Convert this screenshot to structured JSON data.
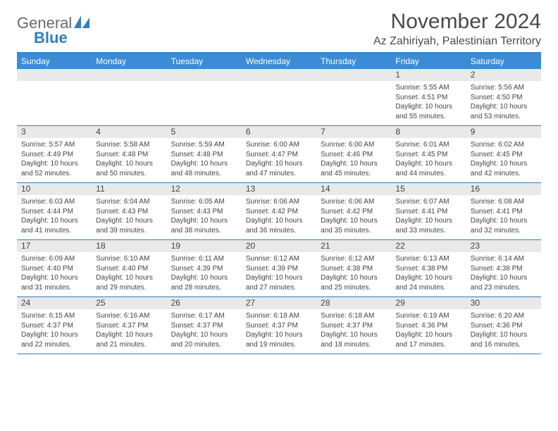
{
  "brand": {
    "word1": "General",
    "word2": "Blue"
  },
  "title": "November 2024",
  "location": "Az Zahiriyah, Palestinian Territory",
  "colors": {
    "header_bg": "#3b8cd4",
    "accent_border": "#2f7fc2",
    "daynum_bg": "#e9e9e9",
    "text": "#444444",
    "logo_gray": "#6b6b6b",
    "logo_blue": "#2f7fc2",
    "page_bg": "#ffffff"
  },
  "day_headers": [
    "Sunday",
    "Monday",
    "Tuesday",
    "Wednesday",
    "Thursday",
    "Friday",
    "Saturday"
  ],
  "weeks": [
    [
      {
        "n": "",
        "sunrise": "",
        "sunset": "",
        "daylight": ""
      },
      {
        "n": "",
        "sunrise": "",
        "sunset": "",
        "daylight": ""
      },
      {
        "n": "",
        "sunrise": "",
        "sunset": "",
        "daylight": ""
      },
      {
        "n": "",
        "sunrise": "",
        "sunset": "",
        "daylight": ""
      },
      {
        "n": "",
        "sunrise": "",
        "sunset": "",
        "daylight": ""
      },
      {
        "n": "1",
        "sunrise": "Sunrise: 5:55 AM",
        "sunset": "Sunset: 4:51 PM",
        "daylight": "Daylight: 10 hours and 55 minutes."
      },
      {
        "n": "2",
        "sunrise": "Sunrise: 5:56 AM",
        "sunset": "Sunset: 4:50 PM",
        "daylight": "Daylight: 10 hours and 53 minutes."
      }
    ],
    [
      {
        "n": "3",
        "sunrise": "Sunrise: 5:57 AM",
        "sunset": "Sunset: 4:49 PM",
        "daylight": "Daylight: 10 hours and 52 minutes."
      },
      {
        "n": "4",
        "sunrise": "Sunrise: 5:58 AM",
        "sunset": "Sunset: 4:48 PM",
        "daylight": "Daylight: 10 hours and 50 minutes."
      },
      {
        "n": "5",
        "sunrise": "Sunrise: 5:59 AM",
        "sunset": "Sunset: 4:48 PM",
        "daylight": "Daylight: 10 hours and 48 minutes."
      },
      {
        "n": "6",
        "sunrise": "Sunrise: 6:00 AM",
        "sunset": "Sunset: 4:47 PM",
        "daylight": "Daylight: 10 hours and 47 minutes."
      },
      {
        "n": "7",
        "sunrise": "Sunrise: 6:00 AM",
        "sunset": "Sunset: 4:46 PM",
        "daylight": "Daylight: 10 hours and 45 minutes."
      },
      {
        "n": "8",
        "sunrise": "Sunrise: 6:01 AM",
        "sunset": "Sunset: 4:45 PM",
        "daylight": "Daylight: 10 hours and 44 minutes."
      },
      {
        "n": "9",
        "sunrise": "Sunrise: 6:02 AM",
        "sunset": "Sunset: 4:45 PM",
        "daylight": "Daylight: 10 hours and 42 minutes."
      }
    ],
    [
      {
        "n": "10",
        "sunrise": "Sunrise: 6:03 AM",
        "sunset": "Sunset: 4:44 PM",
        "daylight": "Daylight: 10 hours and 41 minutes."
      },
      {
        "n": "11",
        "sunrise": "Sunrise: 6:04 AM",
        "sunset": "Sunset: 4:43 PM",
        "daylight": "Daylight: 10 hours and 39 minutes."
      },
      {
        "n": "12",
        "sunrise": "Sunrise: 6:05 AM",
        "sunset": "Sunset: 4:43 PM",
        "daylight": "Daylight: 10 hours and 38 minutes."
      },
      {
        "n": "13",
        "sunrise": "Sunrise: 6:06 AM",
        "sunset": "Sunset: 4:42 PM",
        "daylight": "Daylight: 10 hours and 36 minutes."
      },
      {
        "n": "14",
        "sunrise": "Sunrise: 6:06 AM",
        "sunset": "Sunset: 4:42 PM",
        "daylight": "Daylight: 10 hours and 35 minutes."
      },
      {
        "n": "15",
        "sunrise": "Sunrise: 6:07 AM",
        "sunset": "Sunset: 4:41 PM",
        "daylight": "Daylight: 10 hours and 33 minutes."
      },
      {
        "n": "16",
        "sunrise": "Sunrise: 6:08 AM",
        "sunset": "Sunset: 4:41 PM",
        "daylight": "Daylight: 10 hours and 32 minutes."
      }
    ],
    [
      {
        "n": "17",
        "sunrise": "Sunrise: 6:09 AM",
        "sunset": "Sunset: 4:40 PM",
        "daylight": "Daylight: 10 hours and 31 minutes."
      },
      {
        "n": "18",
        "sunrise": "Sunrise: 6:10 AM",
        "sunset": "Sunset: 4:40 PM",
        "daylight": "Daylight: 10 hours and 29 minutes."
      },
      {
        "n": "19",
        "sunrise": "Sunrise: 6:11 AM",
        "sunset": "Sunset: 4:39 PM",
        "daylight": "Daylight: 10 hours and 28 minutes."
      },
      {
        "n": "20",
        "sunrise": "Sunrise: 6:12 AM",
        "sunset": "Sunset: 4:39 PM",
        "daylight": "Daylight: 10 hours and 27 minutes."
      },
      {
        "n": "21",
        "sunrise": "Sunrise: 6:12 AM",
        "sunset": "Sunset: 4:38 PM",
        "daylight": "Daylight: 10 hours and 25 minutes."
      },
      {
        "n": "22",
        "sunrise": "Sunrise: 6:13 AM",
        "sunset": "Sunset: 4:38 PM",
        "daylight": "Daylight: 10 hours and 24 minutes."
      },
      {
        "n": "23",
        "sunrise": "Sunrise: 6:14 AM",
        "sunset": "Sunset: 4:38 PM",
        "daylight": "Daylight: 10 hours and 23 minutes."
      }
    ],
    [
      {
        "n": "24",
        "sunrise": "Sunrise: 6:15 AM",
        "sunset": "Sunset: 4:37 PM",
        "daylight": "Daylight: 10 hours and 22 minutes."
      },
      {
        "n": "25",
        "sunrise": "Sunrise: 6:16 AM",
        "sunset": "Sunset: 4:37 PM",
        "daylight": "Daylight: 10 hours and 21 minutes."
      },
      {
        "n": "26",
        "sunrise": "Sunrise: 6:17 AM",
        "sunset": "Sunset: 4:37 PM",
        "daylight": "Daylight: 10 hours and 20 minutes."
      },
      {
        "n": "27",
        "sunrise": "Sunrise: 6:18 AM",
        "sunset": "Sunset: 4:37 PM",
        "daylight": "Daylight: 10 hours and 19 minutes."
      },
      {
        "n": "28",
        "sunrise": "Sunrise: 6:18 AM",
        "sunset": "Sunset: 4:37 PM",
        "daylight": "Daylight: 10 hours and 18 minutes."
      },
      {
        "n": "29",
        "sunrise": "Sunrise: 6:19 AM",
        "sunset": "Sunset: 4:36 PM",
        "daylight": "Daylight: 10 hours and 17 minutes."
      },
      {
        "n": "30",
        "sunrise": "Sunrise: 6:20 AM",
        "sunset": "Sunset: 4:36 PM",
        "daylight": "Daylight: 10 hours and 16 minutes."
      }
    ]
  ]
}
